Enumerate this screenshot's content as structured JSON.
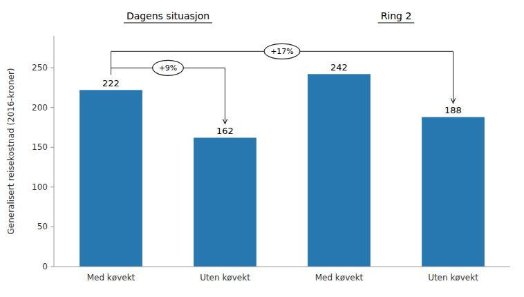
{
  "chart_data": {
    "type": "bar",
    "categories": [
      "Med køvekt",
      "Uten køvekt",
      "Med køvekt",
      "Uten køvekt"
    ],
    "values": [
      222,
      162,
      242,
      188
    ],
    "color": "#2778b0",
    "ylabel": "Generalisert reisekostnad (2016-kroner)",
    "ylim": [
      0,
      290
    ],
    "yticks": [
      0,
      50,
      100,
      150,
      200,
      250
    ],
    "grid": false,
    "data_labels": true,
    "annotations": [
      "+9%",
      "+17%"
    ],
    "group_labels": [
      "Dagens situasjon",
      "Ring 2"
    ]
  }
}
